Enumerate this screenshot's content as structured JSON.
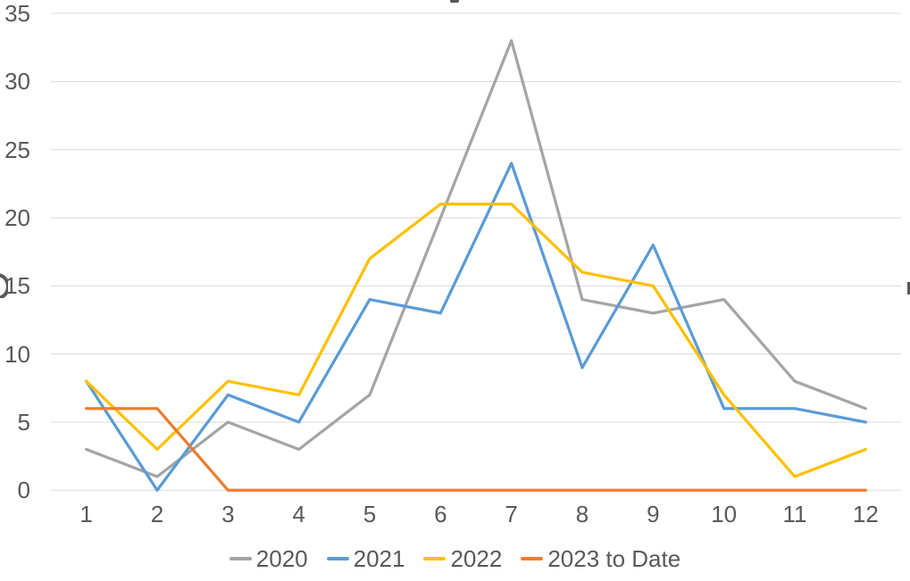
{
  "chart_data": {
    "type": "line",
    "categories": [
      "1",
      "2",
      "3",
      "4",
      "5",
      "6",
      "7",
      "8",
      "9",
      "10",
      "11",
      "12"
    ],
    "series": [
      {
        "name": "2020",
        "color": "#A5A5A5",
        "values": [
          3,
          1,
          5,
          3,
          7,
          20,
          33,
          14,
          13,
          14,
          8,
          6
        ]
      },
      {
        "name": "2021",
        "color": "#5B9BD5",
        "values": [
          8,
          0,
          7,
          5,
          14,
          13,
          24,
          9,
          18,
          6,
          6,
          5
        ]
      },
      {
        "name": "2022",
        "color": "#FFC000",
        "values": [
          8,
          3,
          8,
          7,
          17,
          21,
          21,
          16,
          15,
          7,
          1,
          3
        ]
      },
      {
        "name": "2023 to Date",
        "color": "#ED7D31",
        "values": [
          6,
          6,
          0,
          0,
          0,
          0,
          0,
          0,
          0,
          0,
          0,
          0
        ]
      }
    ],
    "xlabel": "",
    "ylabel": "",
    "ylim": [
      0,
      35
    ],
    "yticks": [
      0,
      5,
      10,
      15,
      20,
      25,
      30,
      35
    ],
    "grid": true,
    "legend_position": "bottom"
  },
  "style": {
    "background": "#FFFFFF",
    "gridline_color": "#D9D9D9",
    "label_color": "#595959",
    "line_width": 3.25
  }
}
